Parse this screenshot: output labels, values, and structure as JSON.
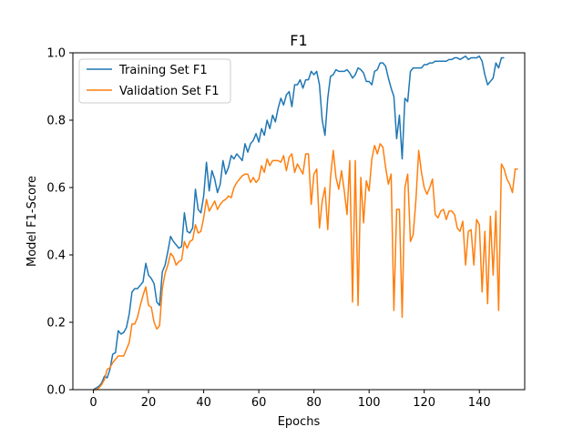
{
  "chart_data": {
    "type": "line",
    "title": "F1",
    "xlabel": "Epochs",
    "ylabel": "Model F1-Score",
    "xlim": [
      -7.45,
      156.45
    ],
    "ylim": [
      0.0,
      1.0
    ],
    "xticks": [
      0,
      20,
      40,
      60,
      80,
      100,
      120,
      140
    ],
    "yticks": [
      0.0,
      0.2,
      0.4,
      0.6,
      0.8,
      1.0
    ],
    "ytick_labels": [
      "0.0",
      "0.2",
      "0.4",
      "0.6",
      "0.8",
      "1.0"
    ],
    "grid": false,
    "legend_position": "upper-left",
    "series": [
      {
        "name": "Training Set F1",
        "color": "#1f77b4",
        "values": [
          0.0,
          0.005,
          0.01,
          0.02,
          0.04,
          0.035,
          0.06,
          0.105,
          0.11,
          0.175,
          0.165,
          0.17,
          0.185,
          0.225,
          0.29,
          0.3,
          0.3,
          0.31,
          0.32,
          0.375,
          0.34,
          0.33,
          0.315,
          0.26,
          0.25,
          0.35,
          0.37,
          0.41,
          0.455,
          0.44,
          0.43,
          0.42,
          0.425,
          0.525,
          0.47,
          0.465,
          0.48,
          0.595,
          0.535,
          0.525,
          0.575,
          0.675,
          0.59,
          0.65,
          0.625,
          0.585,
          0.61,
          0.68,
          0.64,
          0.66,
          0.695,
          0.685,
          0.7,
          0.69,
          0.68,
          0.73,
          0.705,
          0.73,
          0.74,
          0.76,
          0.735,
          0.775,
          0.755,
          0.8,
          0.775,
          0.815,
          0.795,
          0.835,
          0.865,
          0.845,
          0.875,
          0.885,
          0.84,
          0.905,
          0.905,
          0.92,
          0.895,
          0.92,
          0.92,
          0.945,
          0.935,
          0.945,
          0.905,
          0.8,
          0.755,
          0.865,
          0.93,
          0.935,
          0.95,
          0.945,
          0.945,
          0.945,
          0.95,
          0.94,
          0.925,
          0.935,
          0.955,
          0.95,
          0.94,
          0.915,
          0.915,
          0.905,
          0.945,
          0.95,
          0.97,
          0.97,
          0.96,
          0.925,
          0.895,
          0.87,
          0.745,
          0.815,
          0.685,
          0.865,
          0.855,
          0.945,
          0.955,
          0.955,
          0.955,
          0.955,
          0.965,
          0.965,
          0.97,
          0.97,
          0.975,
          0.975,
          0.975,
          0.975,
          0.975,
          0.98,
          0.98,
          0.985,
          0.985,
          0.98,
          0.985,
          0.99,
          0.98,
          0.985,
          0.985,
          0.985,
          0.99,
          0.975,
          0.935,
          0.905,
          0.915,
          0.925,
          0.97,
          0.955,
          0.985,
          0.985
        ]
      },
      {
        "name": "Validation Set F1",
        "color": "#ff7f0e",
        "values": [
          0.0,
          0.0,
          0.005,
          0.015,
          0.03,
          0.06,
          0.065,
          0.08,
          0.09,
          0.1,
          0.1,
          0.1,
          0.12,
          0.14,
          0.195,
          0.195,
          0.215,
          0.25,
          0.28,
          0.305,
          0.25,
          0.245,
          0.2,
          0.18,
          0.19,
          0.3,
          0.345,
          0.37,
          0.405,
          0.395,
          0.37,
          0.38,
          0.385,
          0.44,
          0.42,
          0.44,
          0.445,
          0.49,
          0.465,
          0.47,
          0.51,
          0.565,
          0.53,
          0.545,
          0.56,
          0.535,
          0.55,
          0.56,
          0.565,
          0.575,
          0.57,
          0.6,
          0.615,
          0.625,
          0.635,
          0.64,
          0.64,
          0.615,
          0.63,
          0.615,
          0.625,
          0.665,
          0.645,
          0.685,
          0.665,
          0.68,
          0.68,
          0.68,
          0.675,
          0.695,
          0.65,
          0.69,
          0.7,
          0.645,
          0.67,
          0.655,
          0.64,
          0.7,
          0.7,
          0.55,
          0.64,
          0.655,
          0.48,
          0.56,
          0.6,
          0.475,
          0.63,
          0.71,
          0.63,
          0.595,
          0.65,
          0.59,
          0.52,
          0.68,
          0.26,
          0.68,
          0.25,
          0.63,
          0.495,
          0.62,
          0.59,
          0.685,
          0.725,
          0.7,
          0.73,
          0.72,
          0.66,
          0.61,
          0.64,
          0.235,
          0.535,
          0.535,
          0.215,
          0.6,
          0.64,
          0.44,
          0.46,
          0.565,
          0.71,
          0.645,
          0.6,
          0.58,
          0.6,
          0.625,
          0.52,
          0.51,
          0.53,
          0.535,
          0.505,
          0.53,
          0.53,
          0.52,
          0.48,
          0.47,
          0.5,
          0.37,
          0.47,
          0.475,
          0.37,
          0.505,
          0.49,
          0.29,
          0.47,
          0.255,
          0.515,
          0.34,
          0.53,
          0.235,
          0.67,
          0.655,
          0.625,
          0.61,
          0.585,
          0.655,
          0.655
        ]
      }
    ]
  }
}
